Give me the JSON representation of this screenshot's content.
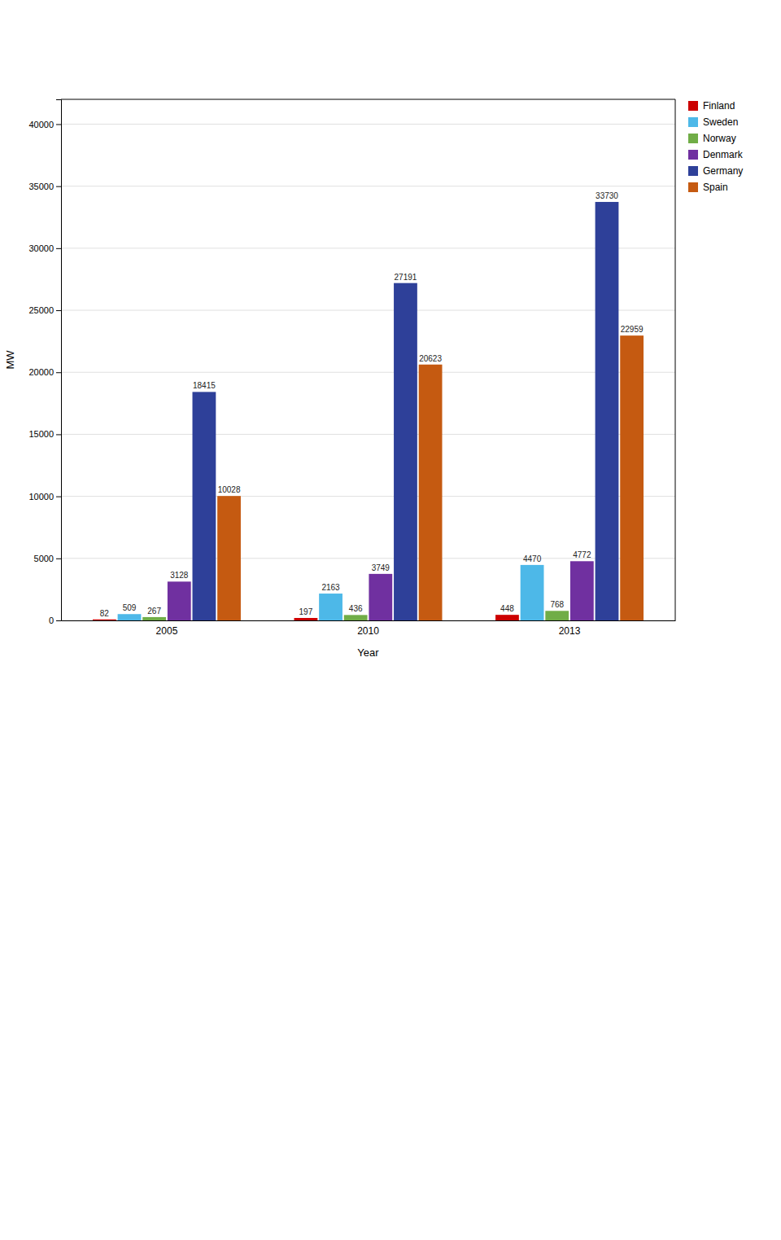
{
  "chart_data": {
    "type": "bar",
    "categories": [
      "2005",
      "2010",
      "2013"
    ],
    "series": [
      {
        "name": "Finland",
        "color": "#cc0000",
        "values": [
          82,
          197,
          448
        ]
      },
      {
        "name": "Sweden",
        "color": "#4db8e8",
        "values": [
          509,
          2163,
          4470
        ]
      },
      {
        "name": "Norway",
        "color": "#70ad47",
        "values": [
          267,
          436,
          768
        ]
      },
      {
        "name": "Denmark",
        "color": "#7030a0",
        "values": [
          3128,
          3749,
          4772
        ]
      },
      {
        "name": "Germany",
        "color": "#2e4099",
        "values": [
          18415,
          27191,
          33730
        ]
      },
      {
        "name": "Spain",
        "color": "#c55a11",
        "values": [
          10028,
          20623,
          22959
        ]
      }
    ],
    "xlabel": "Year",
    "ylabel": "MW",
    "ylim": [
      0,
      42000
    ],
    "yticks": [
      0,
      5000,
      10000,
      15000,
      20000,
      25000,
      30000,
      35000,
      40000
    ],
    "grid": true,
    "legend": "upper right",
    "data_labels": true
  }
}
